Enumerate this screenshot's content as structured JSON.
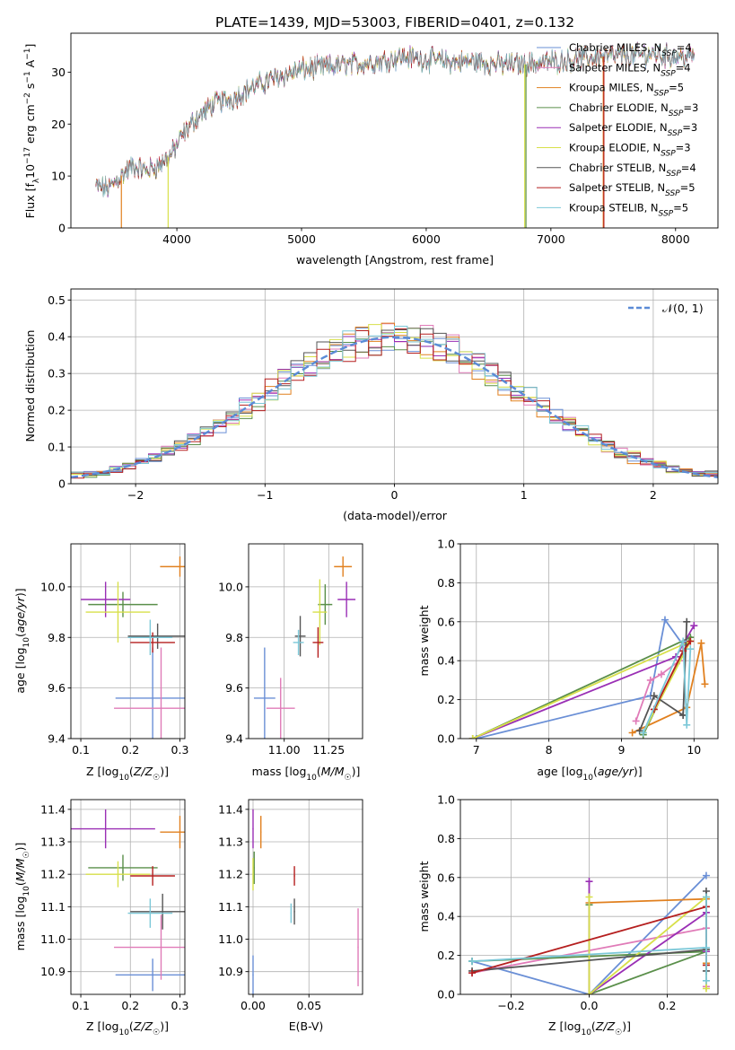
{
  "figure": {
    "title": "PLATE=1439, MJD=53003, FIBERID=0401, z=0.132"
  },
  "palette": {
    "Chabrier MILES": "#6a8fd6",
    "Salpeter MILES": "#e07bb8",
    "Kroupa MILES": "#e1801f",
    "Chabrier ELODIE": "#5a8f4a",
    "Salpeter ELODIE": "#9a2fb5",
    "Kroupa ELODIE": "#d8e04a",
    "Chabrier STELIB": "#555555",
    "Salpeter STELIB": "#b51f1f",
    "Kroupa STELIB": "#7cc8d8"
  },
  "chart_data": [
    {
      "id": "spectrum",
      "type": "line",
      "xlabel": "wavelength [Angstrom, rest frame]",
      "ylabel": "Flux [f_λ 10^-17 erg cm^-2 s^-1 A^-1]",
      "xlim": [
        3150,
        8340
      ],
      "ylim": [
        0,
        37.5
      ],
      "xticks": [
        4000,
        5000,
        6000,
        7000,
        8000
      ],
      "yticks": [
        0,
        10,
        20,
        30
      ],
      "grid": false,
      "legend_position": "top-right",
      "spectrum_x": [
        3350,
        3450,
        3550,
        3650,
        3750,
        3850,
        3950,
        4050,
        4150,
        4300,
        4450,
        4600,
        4800,
        5000,
        5200,
        5400,
        5600,
        5800,
        6000,
        6200,
        6400,
        6600,
        6800,
        7000,
        7200,
        7400,
        7600,
        7800,
        8000,
        8150
      ],
      "spectrum_y": [
        8,
        7.5,
        10,
        12,
        11,
        12,
        14,
        18,
        21,
        24,
        25,
        27,
        29,
        30.5,
        31,
        31.5,
        32,
        33,
        32.5,
        32,
        32,
        31.5,
        31.5,
        32,
        32.5,
        33,
        33,
        33.5,
        33,
        33
      ],
      "series": [
        {
          "name": "Chabrier MILES, N_SSP=4"
        },
        {
          "name": "Salpeter MILES, N_SSP=4"
        },
        {
          "name": "Kroupa MILES, N_SSP=5"
        },
        {
          "name": "Chabrier ELODIE, N_SSP=3"
        },
        {
          "name": "Salpeter ELODIE, N_SSP=3"
        },
        {
          "name": "Kroupa ELODIE, N_SSP=3"
        },
        {
          "name": "Chabrier STELIB, N_SSP=4"
        },
        {
          "name": "Salpeter STELIB, N_SSP=5"
        },
        {
          "name": "Kroupa STELIB, N_SSP=5"
        }
      ]
    },
    {
      "id": "residuals",
      "type": "line",
      "xlabel": "(data-model)/error",
      "ylabel": "Normed distribution",
      "xlim": [
        -2.5,
        2.5
      ],
      "ylim": [
        0,
        0.53
      ],
      "xticks": [
        -2,
        -1,
        0,
        1,
        2
      ],
      "yticks": [
        0.0,
        0.1,
        0.2,
        0.3,
        0.4,
        0.5
      ],
      "grid": true,
      "legend_position": "top-right",
      "gaussian_label": "𝒩(0, 1)",
      "hist_bins": [
        -2.5,
        2.5,
        50
      ]
    },
    {
      "id": "age_vs_Z",
      "type": "scatter",
      "xlabel": "Z [log10(Z/Z☉)]",
      "ylabel": "age [log10(age/yr)]",
      "xlim": [
        0.08,
        0.31
      ],
      "ylim": [
        9.4,
        10.17
      ],
      "xticks": [
        0.1,
        0.2,
        0.3
      ],
      "yticks": [
        9.4,
        9.6,
        9.8,
        10.0
      ],
      "grid": true,
      "points": [
        {
          "s": "Chabrier MILES",
          "x": 0.245,
          "xerr": 0.075,
          "y": 9.56,
          "yerr": 0.2
        },
        {
          "s": "Salpeter MILES",
          "x": 0.262,
          "xerr": 0.095,
          "y": 9.52,
          "yerr": 0.24
        },
        {
          "s": "Kroupa MILES",
          "x": 0.3,
          "xerr": 0.04,
          "y": 10.08,
          "yerr": 0.04
        },
        {
          "s": "Chabrier ELODIE",
          "x": 0.185,
          "xerr": 0.07,
          "y": 9.93,
          "yerr": 0.05
        },
        {
          "s": "Salpeter ELODIE",
          "x": 0.15,
          "xerr": 0.05,
          "y": 9.95,
          "yerr": 0.07
        },
        {
          "s": "Kroupa ELODIE",
          "x": 0.175,
          "xerr": 0.065,
          "y": 9.9,
          "yerr": 0.12
        },
        {
          "s": "Chabrier STELIB",
          "x": 0.255,
          "xerr": 0.06,
          "y": 9.805,
          "yerr": 0.05
        },
        {
          "s": "Salpeter STELIB",
          "x": 0.245,
          "xerr": 0.045,
          "y": 9.78,
          "yerr": 0.04
        },
        {
          "s": "Kroupa STELIB",
          "x": 0.24,
          "xerr": 0.045,
          "y": 9.8,
          "yerr": 0.07
        }
      ]
    },
    {
      "id": "age_vs_mass",
      "type": "scatter",
      "xlabel": "mass [log10(M/M☉)]",
      "ylabel": "",
      "xlim": [
        10.8,
        11.44
      ],
      "ylim": [
        9.4,
        10.17
      ],
      "xticks": [
        11.0,
        11.25
      ],
      "yticks": [
        9.4,
        9.6,
        9.8,
        10.0
      ],
      "grid": true,
      "points": [
        {
          "s": "Chabrier MILES",
          "x": 10.89,
          "xerr": 0.06,
          "y": 9.56,
          "yerr": 0.2
        },
        {
          "s": "Salpeter MILES",
          "x": 10.98,
          "xerr": 0.08,
          "y": 9.52,
          "yerr": 0.12
        },
        {
          "s": "Kroupa MILES",
          "x": 11.33,
          "xerr": 0.05,
          "y": 10.08,
          "yerr": 0.04
        },
        {
          "s": "Chabrier ELODIE",
          "x": 11.23,
          "xerr": 0.04,
          "y": 9.93,
          "yerr": 0.08
        },
        {
          "s": "Salpeter ELODIE",
          "x": 11.35,
          "xerr": 0.05,
          "y": 9.95,
          "yerr": 0.07
        },
        {
          "s": "Kroupa ELODIE",
          "x": 11.2,
          "xerr": 0.04,
          "y": 9.9,
          "yerr": 0.13
        },
        {
          "s": "Chabrier STELIB",
          "x": 11.09,
          "xerr": 0.03,
          "y": 9.805,
          "yerr": 0.08
        },
        {
          "s": "Salpeter STELIB",
          "x": 11.19,
          "xerr": 0.03,
          "y": 9.78,
          "yerr": 0.06
        },
        {
          "s": "Kroupa STELIB",
          "x": 11.08,
          "xerr": 0.03,
          "y": 9.78,
          "yerr": 0.05
        }
      ]
    },
    {
      "id": "weight_vs_age",
      "type": "line",
      "xlabel": "age [log10(age/yr)]",
      "ylabel": "mass weight",
      "xlim": [
        6.78,
        10.33
      ],
      "ylim": [
        0,
        1.0
      ],
      "xticks": [
        7,
        8,
        9,
        10
      ],
      "yticks": [
        0.0,
        0.2,
        0.4,
        0.6,
        0.8,
        1.0
      ],
      "grid": true,
      "series": [
        {
          "s": "Chabrier MILES",
          "x": [
            7.0,
            9.4,
            9.6,
            9.85
          ],
          "y": [
            0.0,
            0.22,
            0.61,
            0.48
          ]
        },
        {
          "s": "Salpeter MILES",
          "x": [
            9.2,
            9.4,
            9.55,
            9.8
          ],
          "y": [
            0.09,
            0.3,
            0.33,
            0.4
          ]
        },
        {
          "s": "Kroupa MILES",
          "x": [
            9.15,
            9.9,
            10.1,
            10.15
          ],
          "y": [
            0.03,
            0.16,
            0.49,
            0.28
          ]
        },
        {
          "s": "Chabrier ELODIE",
          "x": [
            6.95,
            9.95,
            9.3
          ],
          "y": [
            0.0,
            0.52,
            0.02
          ]
        },
        {
          "s": "Salpeter ELODIE",
          "x": [
            6.95,
            9.75,
            10.0
          ],
          "y": [
            0.0,
            0.42,
            0.58
          ]
        },
        {
          "s": "Kroupa ELODIE",
          "x": [
            6.95,
            9.95,
            9.3
          ],
          "y": [
            0.0,
            0.5,
            0.03
          ]
        },
        {
          "s": "Chabrier STELIB",
          "x": [
            9.25,
            9.45,
            9.85,
            9.9,
            9.85
          ],
          "y": [
            0.04,
            0.22,
            0.12,
            0.6,
            0.12
          ]
        },
        {
          "s": "Salpeter STELIB",
          "x": [
            9.45,
            9.85,
            9.95
          ],
          "y": [
            0.15,
            0.45,
            0.5
          ]
        },
        {
          "s": "Kroupa STELIB",
          "x": [
            9.3,
            9.85,
            9.9,
            9.95
          ],
          "y": [
            0.03,
            0.5,
            0.07,
            0.46
          ]
        }
      ]
    },
    {
      "id": "mass_vs_Z",
      "type": "scatter",
      "xlabel": "Z [log10(Z/Z☉)]",
      "ylabel": "mass [log10(M/M☉)]",
      "xlim": [
        0.08,
        0.31
      ],
      "ylim": [
        10.83,
        11.43
      ],
      "xticks": [
        0.1,
        0.2,
        0.3
      ],
      "yticks": [
        10.9,
        11.0,
        11.1,
        11.2,
        11.3,
        11.4
      ],
      "grid": true,
      "points": [
        {
          "s": "Chabrier MILES",
          "x": 0.245,
          "xerr": 0.075,
          "y": 10.89,
          "yerr": 0.05
        },
        {
          "s": "Salpeter MILES",
          "x": 0.262,
          "xerr": 0.095,
          "y": 10.975,
          "yerr": 0.1
        },
        {
          "s": "Kroupa MILES",
          "x": 0.3,
          "xerr": 0.04,
          "y": 11.33,
          "yerr": 0.05
        },
        {
          "s": "Chabrier ELODIE",
          "x": 0.185,
          "xerr": 0.07,
          "y": 11.22,
          "yerr": 0.04
        },
        {
          "s": "Salpeter ELODIE",
          "x": 0.15,
          "xerr": 0.1,
          "y": 11.34,
          "yerr": 0.06
        },
        {
          "s": "Kroupa ELODIE",
          "x": 0.175,
          "xerr": 0.065,
          "y": 11.2,
          "yerr": 0.04
        },
        {
          "s": "Chabrier STELIB",
          "x": 0.265,
          "xerr": 0.065,
          "y": 11.085,
          "yerr": 0.055
        },
        {
          "s": "Salpeter STELIB",
          "x": 0.245,
          "xerr": 0.045,
          "y": 11.195,
          "yerr": 0.03
        },
        {
          "s": "Kroupa STELIB",
          "x": 0.24,
          "xerr": 0.045,
          "y": 11.08,
          "yerr": 0.045
        }
      ]
    },
    {
      "id": "mass_vs_ebv",
      "type": "scatter",
      "xlabel": "E(B-V)",
      "ylabel": "",
      "xlim": [
        -0.004,
        0.098
      ],
      "ylim": [
        10.83,
        11.43
      ],
      "xticks": [
        0.0,
        0.05
      ],
      "yticks": [
        10.9,
        11.0,
        11.1,
        11.2,
        11.3,
        11.4
      ],
      "grid": true,
      "points": [
        {
          "s": "Chabrier MILES",
          "x": 0.0,
          "xerr": 0.0005,
          "y": 10.89,
          "yerr": 0.06
        },
        {
          "s": "Salpeter MILES",
          "x": 0.094,
          "xerr": 0.0005,
          "y": 10.975,
          "yerr": 0.12
        },
        {
          "s": "Kroupa MILES",
          "x": 0.007,
          "xerr": 0.0005,
          "y": 11.33,
          "yerr": 0.05
        },
        {
          "s": "Chabrier ELODIE",
          "x": 0.001,
          "xerr": 0.0005,
          "y": 11.22,
          "yerr": 0.05
        },
        {
          "s": "Salpeter ELODIE",
          "x": 0.0,
          "xerr": 0.0005,
          "y": 11.34,
          "yerr": 0.06
        },
        {
          "s": "Kroupa ELODIE",
          "x": 0.0,
          "xerr": 0.0005,
          "y": 11.2,
          "yerr": 0.05
        },
        {
          "s": "Chabrier STELIB",
          "x": 0.037,
          "xerr": 0.0005,
          "y": 11.085,
          "yerr": 0.04
        },
        {
          "s": "Salpeter STELIB",
          "x": 0.037,
          "xerr": 0.0005,
          "y": 11.195,
          "yerr": 0.03
        },
        {
          "s": "Kroupa STELIB",
          "x": 0.034,
          "xerr": 0.0005,
          "y": 11.08,
          "yerr": 0.03
        }
      ]
    },
    {
      "id": "weight_vs_Z",
      "type": "line",
      "xlabel": "Z [log10(Z/Z☉)]",
      "ylabel": "mass weight",
      "xlim": [
        -0.33,
        0.33
      ],
      "ylim": [
        0,
        1.0
      ],
      "xticks": [
        -0.2,
        0.0,
        0.2
      ],
      "yticks": [
        0.0,
        0.2,
        0.4,
        0.6,
        0.8,
        1.0
      ],
      "grid": true,
      "series": [
        {
          "s": "Chabrier MILES",
          "x": [
            -0.3,
            0.0,
            0.3
          ],
          "y": [
            0.17,
            0.0,
            0.61
          ]
        },
        {
          "s": "Salpeter MILES",
          "x": [
            -0.3,
            0.3,
            0.3
          ],
          "y": [
            0.11,
            0.34,
            0.04
          ]
        },
        {
          "s": "Kroupa MILES",
          "x": [
            0.0,
            0.3,
            0.3
          ],
          "y": [
            0.47,
            0.49,
            0.16
          ]
        },
        {
          "s": "Chabrier ELODIE",
          "x": [
            -0.3,
            0.3,
            0.0,
            0.0
          ],
          "y": [
            0.17,
            0.22,
            0.0,
            0.46
          ]
        },
        {
          "s": "Salpeter ELODIE",
          "x": [
            0.0,
            0.0,
            0.3,
            0.3
          ],
          "y": [
            0.58,
            0.0,
            0.42,
            0.22
          ]
        },
        {
          "s": "Kroupa ELODIE",
          "x": [
            0.0,
            0.0,
            0.3,
            0.3
          ],
          "y": [
            0.5,
            0.0,
            0.5,
            0.03
          ]
        },
        {
          "s": "Chabrier STELIB",
          "x": [
            -0.3,
            0.3,
            0.3,
            0.3
          ],
          "y": [
            0.12,
            0.23,
            0.53,
            0.12
          ]
        },
        {
          "s": "Salpeter STELIB",
          "x": [
            -0.3,
            0.3,
            0.3
          ],
          "y": [
            0.11,
            0.45,
            0.15
          ]
        },
        {
          "s": "Kroupa STELIB",
          "x": [
            -0.3,
            0.3,
            0.3,
            0.3
          ],
          "y": [
            0.17,
            0.24,
            0.5,
            0.07
          ]
        }
      ]
    }
  ]
}
